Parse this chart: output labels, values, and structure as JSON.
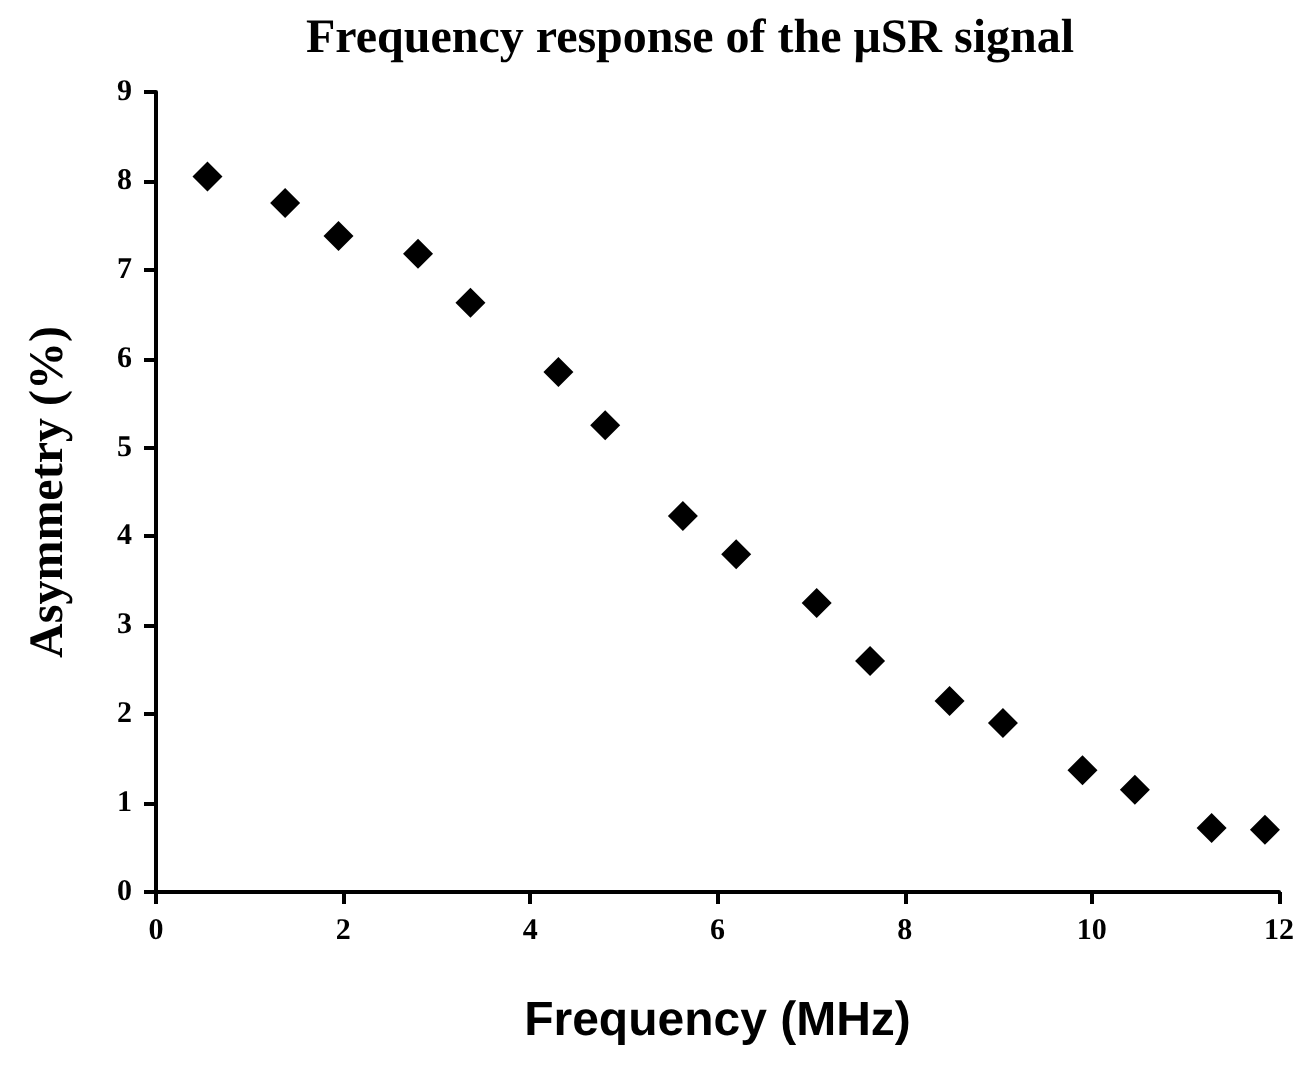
{
  "chart_data": {
    "type": "scatter",
    "title": "Frequency response of the μSR signal",
    "xlabel": "Frequency (MHz)",
    "ylabel": "Asymmetry (%)",
    "x": [
      0.55,
      1.38,
      1.95,
      2.8,
      3.36,
      4.3,
      4.8,
      5.63,
      6.2,
      7.06,
      7.63,
      8.48,
      9.05,
      9.9,
      10.46,
      11.28,
      11.85
    ],
    "values": [
      8.05,
      7.75,
      7.38,
      7.18,
      6.63,
      5.85,
      5.25,
      4.23,
      3.8,
      3.25,
      2.6,
      2.15,
      1.9,
      1.37,
      1.15,
      0.72,
      0.7
    ],
    "color": "#000000",
    "marker": "diamond",
    "xlim": [
      0,
      12
    ],
    "xticks": [
      0,
      2,
      4,
      6,
      8,
      10,
      12
    ],
    "ylim": [
      0,
      9
    ],
    "yticks": [
      0,
      1,
      2,
      3,
      4,
      5,
      6,
      7,
      8,
      9
    ]
  }
}
